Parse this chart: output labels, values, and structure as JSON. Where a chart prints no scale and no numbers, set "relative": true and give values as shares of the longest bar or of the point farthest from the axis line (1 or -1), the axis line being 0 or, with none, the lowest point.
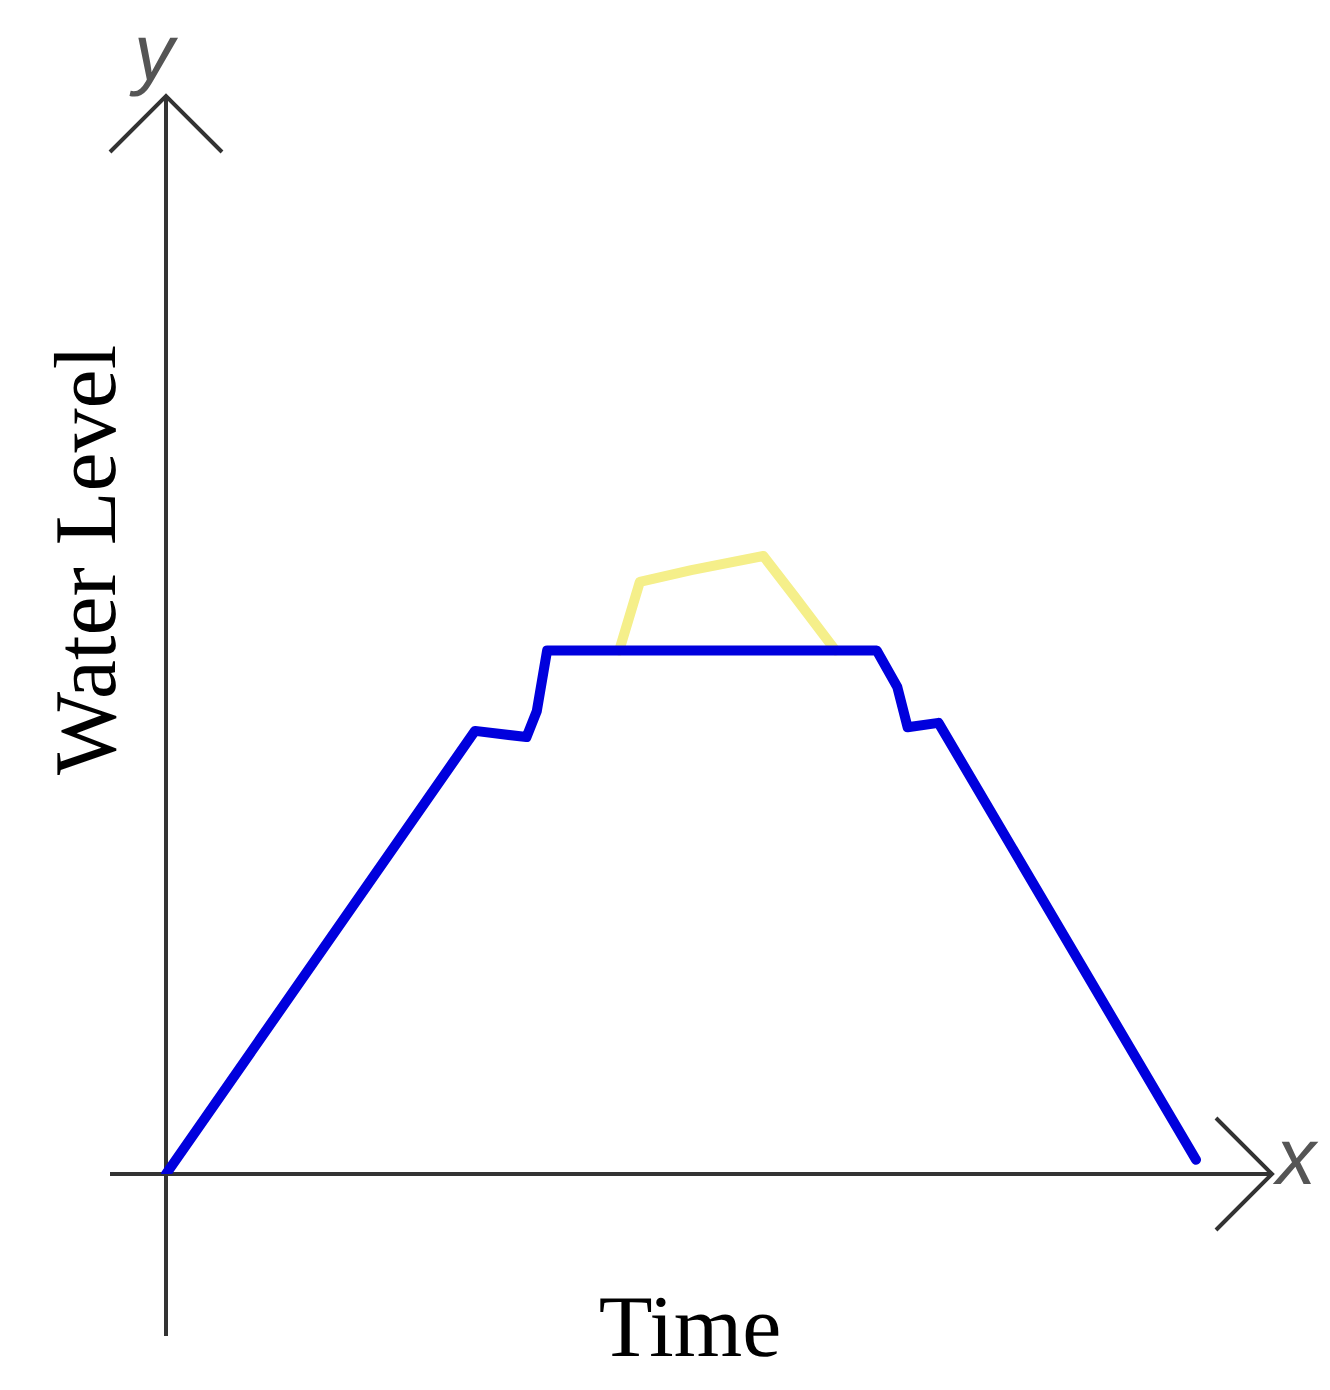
{
  "chart_data": {
    "type": "line",
    "relative": true,
    "xlabel": "Time",
    "ylabel": "Water Level",
    "annotations": [
      "y",
      "x"
    ],
    "legend": false,
    "marker": "none",
    "line_style": "solid",
    "categories": [
      null,
      null,
      null,
      null,
      null,
      null,
      null,
      null,
      null,
      null,
      null,
      null,
      null,
      null,
      null,
      null,
      null,
      null,
      null,
      null,
      null,
      null,
      null,
      null,
      null,
      null,
      null,
      null,
      null,
      null,
      null,
      null,
      null,
      null,
      null,
      null,
      null,
      null,
      null,
      null,
      null,
      null,
      null,
      null,
      null,
      null,
      null,
      null,
      null,
      null,
      null,
      null,
      null,
      null,
      null,
      null,
      null,
      null,
      null,
      null,
      null,
      null,
      null,
      null,
      null,
      null,
      null,
      null,
      null,
      null,
      null,
      null,
      null,
      null,
      null,
      null,
      null,
      null,
      null,
      null,
      null,
      null,
      null,
      null,
      null,
      null,
      null,
      null,
      null,
      null,
      null,
      null,
      null,
      null,
      null,
      null,
      null,
      null,
      null,
      null,
      null
    ],
    "series": [
      {
        "color": "#0000dd",
        "values": [
          0,
          null,
          null,
          null,
          null,
          null,
          null,
          null,
          null,
          null,
          null,
          null,
          null,
          null,
          null,
          null,
          null,
          null,
          null,
          null,
          null,
          null,
          null,
          null,
          null,
          null,
          null,
          null,
          null,
          null,
          0.717,
          null,
          null,
          null,
          null,
          0.707,
          0.749,
          0.847,
          null,
          null,
          null,
          null,
          null,
          null,
          null,
          null,
          null,
          null,
          null,
          null,
          null,
          null,
          null,
          null,
          null,
          null,
          null,
          null,
          null,
          null,
          null,
          null,
          null,
          null,
          null,
          null,
          null,
          null,
          null,
          0.847,
          null,
          0.788,
          0.723,
          null,
          null,
          0.73,
          null,
          null,
          null,
          null,
          null,
          null,
          null,
          null,
          null,
          null,
          null,
          null,
          null,
          null,
          null,
          null,
          null,
          null,
          null,
          null,
          null,
          null,
          null,
          null,
          0.023
        ]
      },
      {
        "color": "#f5ef8a",
        "values": [
          null,
          null,
          null,
          null,
          null,
          null,
          null,
          null,
          null,
          null,
          null,
          null,
          null,
          null,
          null,
          null,
          null,
          null,
          null,
          null,
          null,
          null,
          null,
          null,
          null,
          null,
          null,
          null,
          null,
          null,
          null,
          null,
          null,
          null,
          null,
          null,
          null,
          null,
          null,
          null,
          null,
          null,
          null,
          null,
          0.847,
          null,
          0.958,
          null,
          null,
          null,
          null,
          0.977,
          null,
          null,
          null,
          null,
          null,
          null,
          1.0,
          null,
          null,
          0.935,
          null,
          null,
          null,
          0.847,
          null,
          null,
          null,
          null,
          null,
          null,
          null,
          null,
          null,
          null,
          null,
          null,
          null,
          null,
          null,
          null,
          null,
          null,
          null,
          null,
          null,
          null,
          null,
          null,
          null,
          null,
          null,
          null,
          null,
          null,
          null,
          null,
          null,
          null,
          null
        ]
      }
    ]
  }
}
